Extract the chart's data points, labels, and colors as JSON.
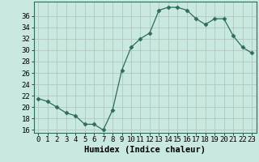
{
  "xlabel": "Humidex (Indice chaleur)",
  "ylabel": "",
  "x": [
    0,
    1,
    2,
    3,
    4,
    5,
    6,
    7,
    8,
    9,
    10,
    11,
    12,
    13,
    14,
    15,
    16,
    17,
    18,
    19,
    20,
    21,
    22,
    23
  ],
  "y": [
    21.5,
    21.0,
    20.0,
    19.0,
    18.5,
    17.0,
    17.0,
    16.0,
    19.5,
    26.5,
    30.5,
    32.0,
    33.0,
    37.0,
    37.5,
    37.5,
    37.0,
    35.5,
    34.5,
    35.5,
    35.5,
    32.5,
    30.5,
    29.5
  ],
  "line_color": "#2e6b5e",
  "marker": "D",
  "marker_size": 2.5,
  "bg_color": "#c8e8e0",
  "grid_color": "#b0c8c0",
  "ylim": [
    15.5,
    38.5
  ],
  "yticks": [
    16,
    18,
    20,
    22,
    24,
    26,
    28,
    30,
    32,
    34,
    36
  ],
  "xticks": [
    0,
    1,
    2,
    3,
    4,
    5,
    6,
    7,
    8,
    9,
    10,
    11,
    12,
    13,
    14,
    15,
    16,
    17,
    18,
    19,
    20,
    21,
    22,
    23
  ],
  "tick_fontsize": 6.5,
  "xlabel_fontsize": 7.5,
  "font_family": "monospace"
}
